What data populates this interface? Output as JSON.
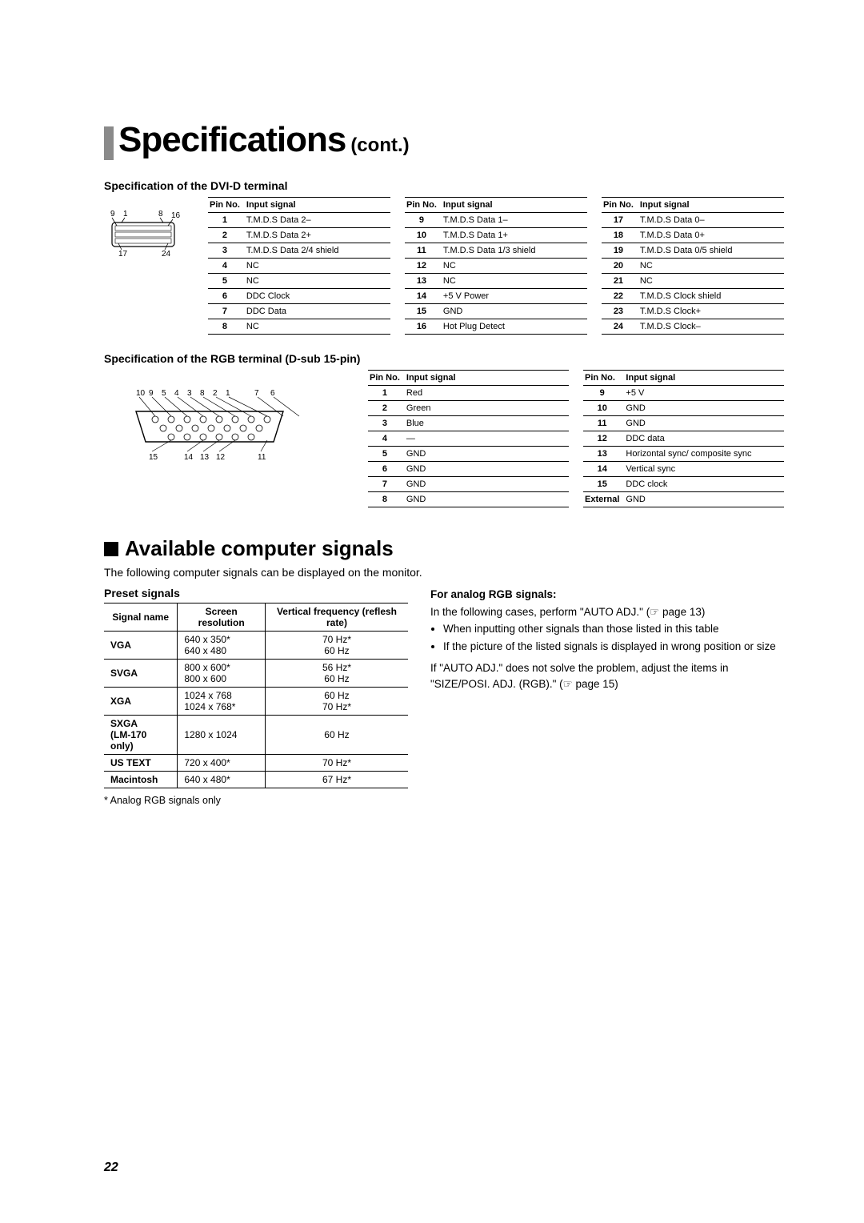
{
  "title": {
    "main": "Specifications",
    "cont": "(cont.)"
  },
  "dvi": {
    "heading": "Specification of the DVI-D terminal",
    "col_pin": "Pin No.",
    "col_sig": "Input signal",
    "diagram_labels": {
      "tl": "9",
      "t1": "1",
      "t8": "8",
      "tr": "16",
      "bl": "17",
      "br": "24"
    },
    "cols": [
      [
        {
          "n": "1",
          "s": "T.M.D.S Data 2–"
        },
        {
          "n": "2",
          "s": "T.M.D.S Data 2+"
        },
        {
          "n": "3",
          "s": "T.M.D.S Data 2/4 shield"
        },
        {
          "n": "4",
          "s": "NC"
        },
        {
          "n": "5",
          "s": "NC"
        },
        {
          "n": "6",
          "s": "DDC Clock"
        },
        {
          "n": "7",
          "s": "DDC Data"
        },
        {
          "n": "8",
          "s": "NC"
        }
      ],
      [
        {
          "n": "9",
          "s": "T.M.D.S Data 1–"
        },
        {
          "n": "10",
          "s": "T.M.D.S Data 1+"
        },
        {
          "n": "11",
          "s": "T.M.D.S Data 1/3 shield"
        },
        {
          "n": "12",
          "s": "NC"
        },
        {
          "n": "13",
          "s": "NC"
        },
        {
          "n": "14",
          "s": "+5 V Power"
        },
        {
          "n": "15",
          "s": "GND"
        },
        {
          "n": "16",
          "s": "Hot Plug Detect"
        }
      ],
      [
        {
          "n": "17",
          "s": "T.M.D.S Data 0–"
        },
        {
          "n": "18",
          "s": "T.M.D.S Data 0+"
        },
        {
          "n": "19",
          "s": "T.M.D.S Data 0/5 shield"
        },
        {
          "n": "20",
          "s": "NC"
        },
        {
          "n": "21",
          "s": "NC"
        },
        {
          "n": "22",
          "s": "T.M.D.S Clock shield"
        },
        {
          "n": "23",
          "s": "T.M.D.S Clock+"
        },
        {
          "n": "24",
          "s": "T.M.D.S Clock–"
        }
      ]
    ]
  },
  "rgb": {
    "heading": "Specification of the RGB terminal (D-sub 15-pin)",
    "col_pin": "Pin No.",
    "col_sig": "Input signal",
    "diagram_top": [
      "10",
      "9",
      "5",
      "4",
      "3",
      "8",
      "2",
      "1",
      "",
      "7",
      "6"
    ],
    "diagram_bot": [
      "15",
      "",
      "14",
      "13",
      "12",
      "",
      "11"
    ],
    "cols": [
      [
        {
          "n": "1",
          "s": "Red"
        },
        {
          "n": "2",
          "s": "Green"
        },
        {
          "n": "3",
          "s": "Blue"
        },
        {
          "n": "4",
          "s": "—"
        },
        {
          "n": "5",
          "s": "GND"
        },
        {
          "n": "6",
          "s": "GND"
        },
        {
          "n": "7",
          "s": "GND"
        },
        {
          "n": "8",
          "s": "GND"
        }
      ],
      [
        {
          "n": "9",
          "s": "+5 V"
        },
        {
          "n": "10",
          "s": "GND"
        },
        {
          "n": "11",
          "s": "GND"
        },
        {
          "n": "12",
          "s": "DDC data"
        },
        {
          "n": "13",
          "s": "Horizontal sync/ composite sync"
        },
        {
          "n": "14",
          "s": "Vertical sync"
        },
        {
          "n": "15",
          "s": "DDC clock"
        },
        {
          "n": "External",
          "s": "GND"
        }
      ]
    ]
  },
  "avail": {
    "heading": "Available computer signals",
    "intro": "The following computer signals can be displayed on the monitor."
  },
  "preset": {
    "heading": "Preset signals",
    "th1": "Signal name",
    "th2": "Screen resolution",
    "th3": "Vertical frequency (reflesh rate)",
    "rows": [
      {
        "name": "VGA",
        "res": "640 x 350*\n640 x 480",
        "freq": "70 Hz*\n60 Hz"
      },
      {
        "name": "SVGA",
        "res": "800 x 600*\n800 x 600",
        "freq": "56 Hz*\n60 Hz"
      },
      {
        "name": "XGA",
        "res": "1024 x 768\n1024 x 768*",
        "freq": "60 Hz\n70 Hz*"
      },
      {
        "name": "SXGA (LM-170 only)",
        "res": "1280 x 1024",
        "freq": "60 Hz"
      },
      {
        "name": "US TEXT",
        "res": "720 x 400*",
        "freq": "70 Hz*"
      },
      {
        "name": "Macintosh",
        "res": "640 x 480*",
        "freq": "67 Hz*"
      }
    ],
    "note": "* Analog RGB signals only"
  },
  "rgbnotes": {
    "heading": "For analog RGB signals:",
    "p1a": "In the following cases, perform \"AUTO ADJ.\" (☞ page 13)",
    "b1": "When inputting other signals than those listed in this table",
    "b2": "If the picture of the listed signals is displayed in wrong position or size",
    "p2": "If \"AUTO ADJ.\" does not solve the problem, adjust the items in \"SIZE/POSI. ADJ. (RGB).\" (☞ page 15)"
  },
  "page": "22"
}
